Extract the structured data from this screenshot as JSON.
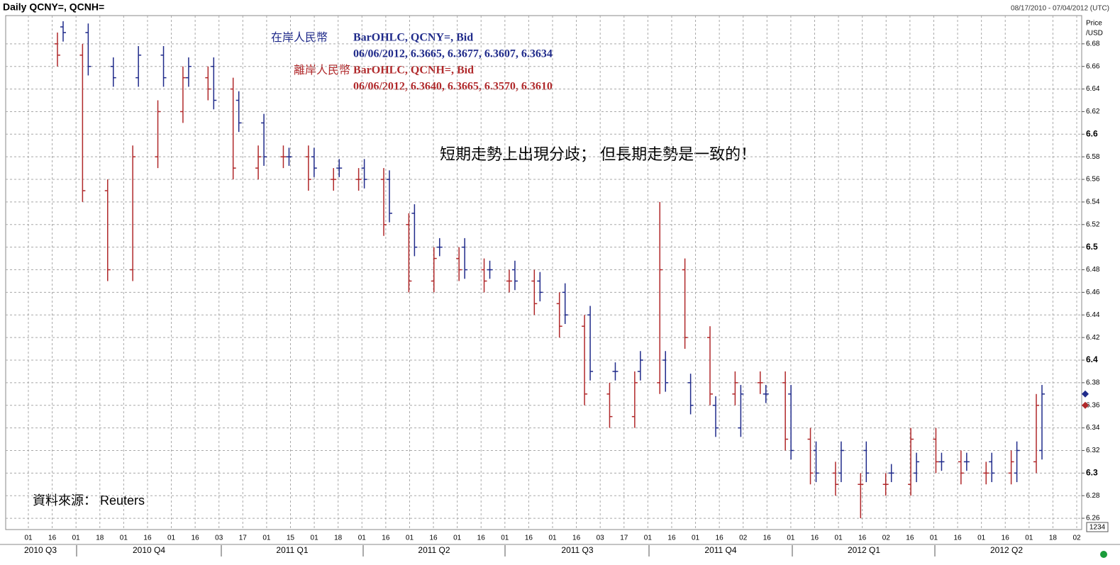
{
  "chart_data": {
    "type": "ohlc",
    "title": "Daily QCNY=, QCNH=",
    "date_range": "08/17/2010 - 07/04/2012 (UTC)",
    "y_axis_label": [
      "Price",
      "/USD"
    ],
    "annotation": "短期走勢上出現分歧； 但長期走勢是一致的！",
    "source": "資料來源： Reuters",
    "corner_box": "1234",
    "ylim": [
      6.25,
      6.705
    ],
    "yticks": [
      6.26,
      6.28,
      6.3,
      6.32,
      6.34,
      6.36,
      6.38,
      6.4,
      6.42,
      6.44,
      6.46,
      6.48,
      6.5,
      6.52,
      6.54,
      6.56,
      6.58,
      6.6,
      6.62,
      6.64,
      6.66,
      6.68
    ],
    "xticks": [
      "01",
      "16",
      "01",
      "18",
      "01",
      "16",
      "01",
      "16",
      "03",
      "17",
      "01",
      "15",
      "01",
      "18",
      "01",
      "16",
      "01",
      "16",
      "01",
      "16",
      "01",
      "16",
      "01",
      "16",
      "03",
      "17",
      "01",
      "16",
      "01",
      "16",
      "02",
      "16",
      "01",
      "16",
      "01",
      "16",
      "02",
      "16",
      "01",
      "16",
      "01",
      "16",
      "01",
      "18",
      "02"
    ],
    "quarters": [
      "2010 Q3",
      "2010 Q4",
      "2011 Q1",
      "2011 Q2",
      "2011 Q3",
      "2011 Q4",
      "2012 Q1",
      "2012 Q2"
    ],
    "grid": true,
    "categories": [
      null,
      null,
      null,
      null,
      null,
      null,
      null,
      null,
      null,
      null,
      null,
      null,
      null,
      null,
      null,
      null,
      null,
      null,
      null,
      null,
      null,
      null,
      null,
      null,
      null,
      null,
      null,
      null,
      null,
      null,
      null,
      null,
      null,
      null,
      null,
      null,
      null,
      null,
      null,
      null
    ],
    "series": [
      {
        "name": "在岸人民幣",
        "study": "BarOHLC, QCNY=, Bid",
        "info": "06/06/2012, 6.3665, 6.3677, 6.3607, 6.3634",
        "color": "#1f2a8a",
        "open": [
          6.695,
          6.69,
          6.66,
          6.65,
          6.67,
          6.65,
          6.66,
          6.63,
          6.61,
          6.58,
          6.58,
          6.57,
          6.57,
          6.56,
          6.53,
          6.5,
          6.5,
          6.48,
          6.48,
          6.47,
          6.46,
          6.44,
          6.39,
          6.39,
          6.4,
          6.38,
          6.36,
          6.34,
          6.37,
          6.37,
          6.32,
          6.3,
          6.32,
          6.3,
          6.3,
          6.31,
          6.31,
          6.31,
          6.3,
          6.32
        ],
        "high": [
          6.7,
          6.698,
          6.668,
          6.678,
          6.678,
          6.668,
          6.668,
          6.638,
          6.618,
          6.588,
          6.588,
          6.578,
          6.578,
          6.568,
          6.538,
          6.508,
          6.508,
          6.488,
          6.488,
          6.478,
          6.468,
          6.448,
          6.398,
          6.408,
          6.408,
          6.388,
          6.368,
          6.378,
          6.378,
          6.378,
          6.328,
          6.328,
          6.328,
          6.308,
          6.318,
          6.318,
          6.318,
          6.318,
          6.328,
          6.378
        ],
        "low": [
          6.682,
          6.652,
          6.642,
          6.642,
          6.642,
          6.642,
          6.622,
          6.602,
          6.572,
          6.572,
          6.562,
          6.562,
          6.552,
          6.522,
          6.492,
          6.492,
          6.472,
          6.472,
          6.462,
          6.452,
          6.432,
          6.382,
          6.382,
          6.382,
          6.372,
          6.352,
          6.332,
          6.332,
          6.362,
          6.312,
          6.292,
          6.292,
          6.292,
          6.292,
          6.292,
          6.302,
          6.302,
          6.292,
          6.292,
          6.312
        ],
        "close": [
          6.69,
          6.66,
          6.65,
          6.67,
          6.65,
          6.66,
          6.63,
          6.61,
          6.58,
          6.58,
          6.57,
          6.57,
          6.56,
          6.53,
          6.5,
          6.5,
          6.48,
          6.48,
          6.47,
          6.46,
          6.44,
          6.39,
          6.39,
          6.4,
          6.38,
          6.36,
          6.34,
          6.37,
          6.37,
          6.32,
          6.3,
          6.32,
          6.3,
          6.3,
          6.31,
          6.31,
          6.31,
          6.3,
          6.32,
          6.37
        ]
      },
      {
        "name": "離岸人民幣",
        "study": "BarOHLC, QCNH=, Bid",
        "info": "06/06/2012, 6.3640, 6.3665, 6.3570, 6.3610",
        "color": "#b0282a",
        "open": [
          6.68,
          6.67,
          6.55,
          6.48,
          6.58,
          6.62,
          6.65,
          6.64,
          6.57,
          6.58,
          6.58,
          6.56,
          6.56,
          6.56,
          6.52,
          6.47,
          6.49,
          6.48,
          6.47,
          6.47,
          6.45,
          6.43,
          6.37,
          6.35,
          6.38,
          6.48,
          6.42,
          6.37,
          6.38,
          6.38,
          6.33,
          6.3,
          6.29,
          6.29,
          6.29,
          6.33,
          6.31,
          6.3,
          6.3,
          6.31
        ],
        "high": [
          6.69,
          6.68,
          6.56,
          6.59,
          6.63,
          6.66,
          6.66,
          6.65,
          6.59,
          6.59,
          6.59,
          6.57,
          6.57,
          6.57,
          6.53,
          6.5,
          6.5,
          6.49,
          6.48,
          6.48,
          6.46,
          6.44,
          6.38,
          6.39,
          6.54,
          6.49,
          6.43,
          6.39,
          6.39,
          6.39,
          6.34,
          6.31,
          6.3,
          6.3,
          6.34,
          6.34,
          6.32,
          6.31,
          6.32,
          6.37
        ],
        "low": [
          6.66,
          6.54,
          6.47,
          6.47,
          6.57,
          6.61,
          6.63,
          6.56,
          6.56,
          6.57,
          6.55,
          6.55,
          6.55,
          6.51,
          6.46,
          6.46,
          6.47,
          6.46,
          6.46,
          6.44,
          6.42,
          6.36,
          6.34,
          6.34,
          6.37,
          6.41,
          6.36,
          6.36,
          6.37,
          6.32,
          6.29,
          6.28,
          6.26,
          6.28,
          6.28,
          6.3,
          6.29,
          6.29,
          6.29,
          6.3
        ],
        "close": [
          6.67,
          6.55,
          6.48,
          6.58,
          6.62,
          6.65,
          6.64,
          6.57,
          6.58,
          6.58,
          6.56,
          6.56,
          6.56,
          6.52,
          6.47,
          6.49,
          6.48,
          6.47,
          6.47,
          6.45,
          6.43,
          6.37,
          6.35,
          6.38,
          6.48,
          6.42,
          6.37,
          6.38,
          6.38,
          6.33,
          6.3,
          6.29,
          6.29,
          6.29,
          6.33,
          6.31,
          6.3,
          6.3,
          6.31,
          6.36
        ]
      }
    ]
  }
}
